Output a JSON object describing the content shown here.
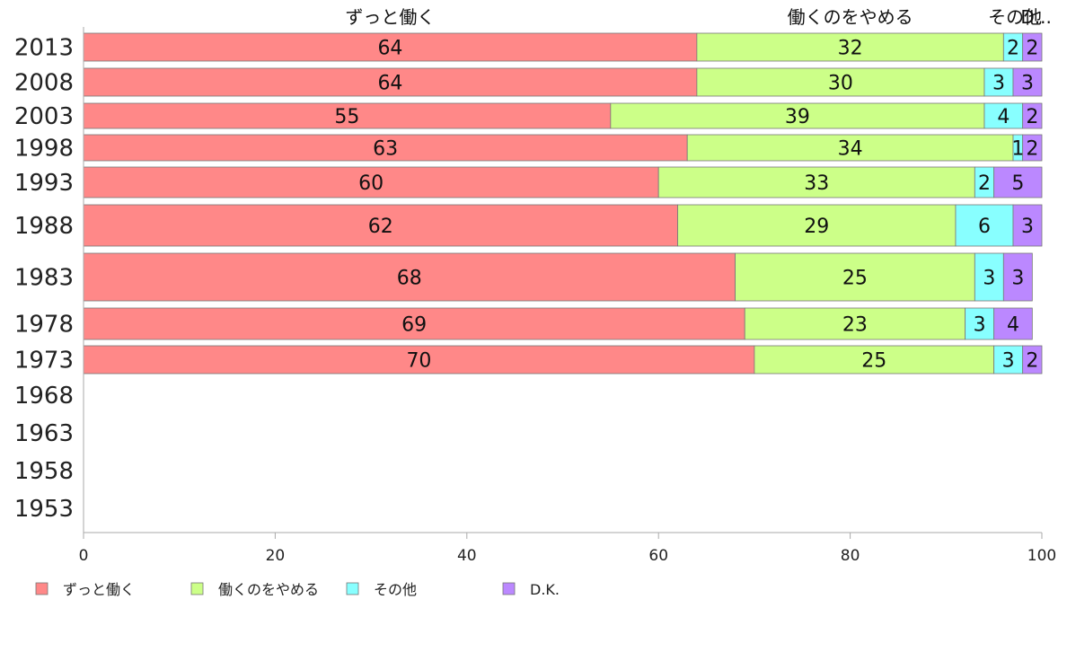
{
  "chart_data": {
    "type": "bar",
    "orientation": "horizontal",
    "stacked": true,
    "categories": [
      "2013",
      "2008",
      "2003",
      "1998",
      "1993",
      "1988",
      "1983",
      "1978",
      "1973",
      "1968",
      "1963",
      "1958",
      "1953"
    ],
    "series": [
      {
        "name": "ずっと働く",
        "color": "#ff8888",
        "values": [
          64,
          64,
          55,
          63,
          60,
          62,
          68,
          69,
          70,
          null,
          null,
          null,
          null
        ]
      },
      {
        "name": "働くのをやめる",
        "color": "#ccff88",
        "values": [
          32,
          30,
          39,
          34,
          33,
          29,
          25,
          23,
          25,
          null,
          null,
          null,
          null
        ]
      },
      {
        "name": "その他",
        "color": "#88ffff",
        "values": [
          2,
          3,
          4,
          1,
          2,
          6,
          3,
          3,
          3,
          null,
          null,
          null,
          null
        ]
      },
      {
        "name": "D.K.",
        "color": "#bb88ff",
        "values": [
          2,
          3,
          2,
          2,
          5,
          3,
          3,
          4,
          2,
          null,
          null,
          null,
          null
        ]
      }
    ],
    "top_labels": [
      "ずっと働く",
      "働くのをやめる",
      "その他",
      "D.K."
    ],
    "xlim": [
      0,
      100
    ],
    "xticks": [
      0,
      20,
      40,
      60,
      80,
      100
    ],
    "legend": "bottom"
  }
}
